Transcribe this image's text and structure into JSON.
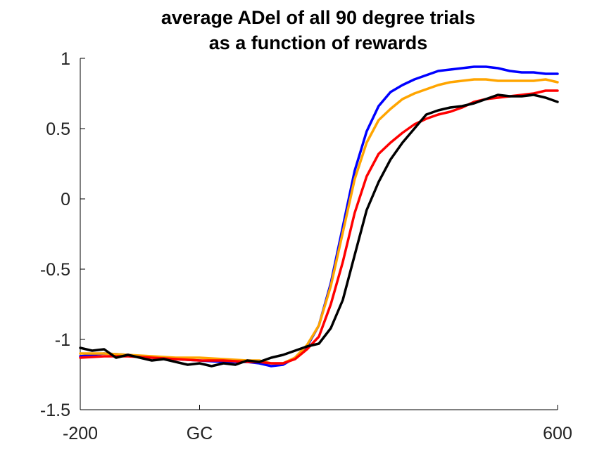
{
  "chart_data": {
    "type": "line",
    "title": "average ADel of all 90 degree trials",
    "subtitle": "as a function of rewards",
    "xlabel": "",
    "ylabel": "",
    "xlim": [
      -200,
      600
    ],
    "ylim": [
      -1.5,
      1
    ],
    "x_ticks": [
      {
        "value": -200,
        "label": "-200"
      },
      {
        "value": 0,
        "label": "GC"
      },
      {
        "value": 600,
        "label": "600"
      }
    ],
    "y_ticks": [
      {
        "value": 1,
        "label": "1"
      },
      {
        "value": 0.5,
        "label": "0.5"
      },
      {
        "value": 0,
        "label": "0"
      },
      {
        "value": -0.5,
        "label": "-0.5"
      },
      {
        "value": -1,
        "label": "-1"
      },
      {
        "value": -1.5,
        "label": "-1.5"
      }
    ],
    "grid": false,
    "series": [
      {
        "color": "#0000ff",
        "points": [
          [
            -200,
            -1.12
          ],
          [
            -160,
            -1.1
          ],
          [
            -120,
            -1.11
          ],
          [
            -80,
            -1.13
          ],
          [
            -40,
            -1.14
          ],
          [
            0,
            -1.15
          ],
          [
            40,
            -1.16
          ],
          [
            80,
            -1.16
          ],
          [
            100,
            -1.17
          ],
          [
            120,
            -1.19
          ],
          [
            140,
            -1.18
          ],
          [
            160,
            -1.13
          ],
          [
            180,
            -1.05
          ],
          [
            200,
            -0.9
          ],
          [
            220,
            -0.6
          ],
          [
            240,
            -0.2
          ],
          [
            260,
            0.2
          ],
          [
            280,
            0.48
          ],
          [
            300,
            0.66
          ],
          [
            320,
            0.76
          ],
          [
            340,
            0.81
          ],
          [
            360,
            0.85
          ],
          [
            380,
            0.88
          ],
          [
            400,
            0.91
          ],
          [
            420,
            0.92
          ],
          [
            440,
            0.93
          ],
          [
            460,
            0.94
          ],
          [
            480,
            0.94
          ],
          [
            500,
            0.93
          ],
          [
            520,
            0.91
          ],
          [
            540,
            0.9
          ],
          [
            560,
            0.9
          ],
          [
            580,
            0.89
          ],
          [
            600,
            0.89
          ]
        ]
      },
      {
        "color": "#ffa500",
        "points": [
          [
            -200,
            -1.1
          ],
          [
            -160,
            -1.1
          ],
          [
            -120,
            -1.11
          ],
          [
            -80,
            -1.12
          ],
          [
            -40,
            -1.13
          ],
          [
            0,
            -1.13
          ],
          [
            40,
            -1.14
          ],
          [
            80,
            -1.15
          ],
          [
            100,
            -1.15
          ],
          [
            120,
            -1.17
          ],
          [
            140,
            -1.17
          ],
          [
            160,
            -1.13
          ],
          [
            180,
            -1.04
          ],
          [
            200,
            -0.9
          ],
          [
            220,
            -0.62
          ],
          [
            240,
            -0.24
          ],
          [
            260,
            0.14
          ],
          [
            280,
            0.4
          ],
          [
            300,
            0.56
          ],
          [
            320,
            0.64
          ],
          [
            340,
            0.71
          ],
          [
            360,
            0.75
          ],
          [
            380,
            0.78
          ],
          [
            400,
            0.81
          ],
          [
            420,
            0.83
          ],
          [
            440,
            0.84
          ],
          [
            460,
            0.85
          ],
          [
            480,
            0.85
          ],
          [
            500,
            0.84
          ],
          [
            520,
            0.84
          ],
          [
            540,
            0.84
          ],
          [
            560,
            0.84
          ],
          [
            580,
            0.85
          ],
          [
            600,
            0.83
          ]
        ]
      },
      {
        "color": "#ff0000",
        "points": [
          [
            -200,
            -1.13
          ],
          [
            -160,
            -1.12
          ],
          [
            -120,
            -1.12
          ],
          [
            -80,
            -1.13
          ],
          [
            -40,
            -1.14
          ],
          [
            0,
            -1.15
          ],
          [
            40,
            -1.15
          ],
          [
            80,
            -1.16
          ],
          [
            100,
            -1.16
          ],
          [
            120,
            -1.17
          ],
          [
            140,
            -1.17
          ],
          [
            160,
            -1.14
          ],
          [
            180,
            -1.07
          ],
          [
            200,
            -0.98
          ],
          [
            220,
            -0.75
          ],
          [
            240,
            -0.45
          ],
          [
            260,
            -0.1
          ],
          [
            280,
            0.16
          ],
          [
            300,
            0.32
          ],
          [
            320,
            0.4
          ],
          [
            340,
            0.47
          ],
          [
            360,
            0.53
          ],
          [
            380,
            0.57
          ],
          [
            400,
            0.6
          ],
          [
            420,
            0.62
          ],
          [
            440,
            0.65
          ],
          [
            460,
            0.69
          ],
          [
            480,
            0.71
          ],
          [
            500,
            0.72
          ],
          [
            520,
            0.73
          ],
          [
            540,
            0.74
          ],
          [
            560,
            0.75
          ],
          [
            580,
            0.77
          ],
          [
            600,
            0.77
          ]
        ]
      },
      {
        "color": "#000000",
        "points": [
          [
            -200,
            -1.06
          ],
          [
            -180,
            -1.08
          ],
          [
            -160,
            -1.07
          ],
          [
            -140,
            -1.13
          ],
          [
            -120,
            -1.11
          ],
          [
            -100,
            -1.13
          ],
          [
            -80,
            -1.15
          ],
          [
            -60,
            -1.14
          ],
          [
            -40,
            -1.16
          ],
          [
            -20,
            -1.18
          ],
          [
            0,
            -1.17
          ],
          [
            20,
            -1.19
          ],
          [
            40,
            -1.17
          ],
          [
            60,
            -1.18
          ],
          [
            80,
            -1.15
          ],
          [
            100,
            -1.16
          ],
          [
            120,
            -1.13
          ],
          [
            140,
            -1.11
          ],
          [
            160,
            -1.08
          ],
          [
            180,
            -1.05
          ],
          [
            200,
            -1.03
          ],
          [
            220,
            -0.92
          ],
          [
            240,
            -0.72
          ],
          [
            260,
            -0.4
          ],
          [
            280,
            -0.08
          ],
          [
            300,
            0.12
          ],
          [
            320,
            0.28
          ],
          [
            340,
            0.4
          ],
          [
            360,
            0.5
          ],
          [
            380,
            0.6
          ],
          [
            400,
            0.63
          ],
          [
            420,
            0.65
          ],
          [
            440,
            0.66
          ],
          [
            460,
            0.68
          ],
          [
            480,
            0.71
          ],
          [
            500,
            0.74
          ],
          [
            520,
            0.73
          ],
          [
            540,
            0.73
          ],
          [
            560,
            0.74
          ],
          [
            580,
            0.72
          ],
          [
            600,
            0.69
          ]
        ]
      }
    ]
  }
}
